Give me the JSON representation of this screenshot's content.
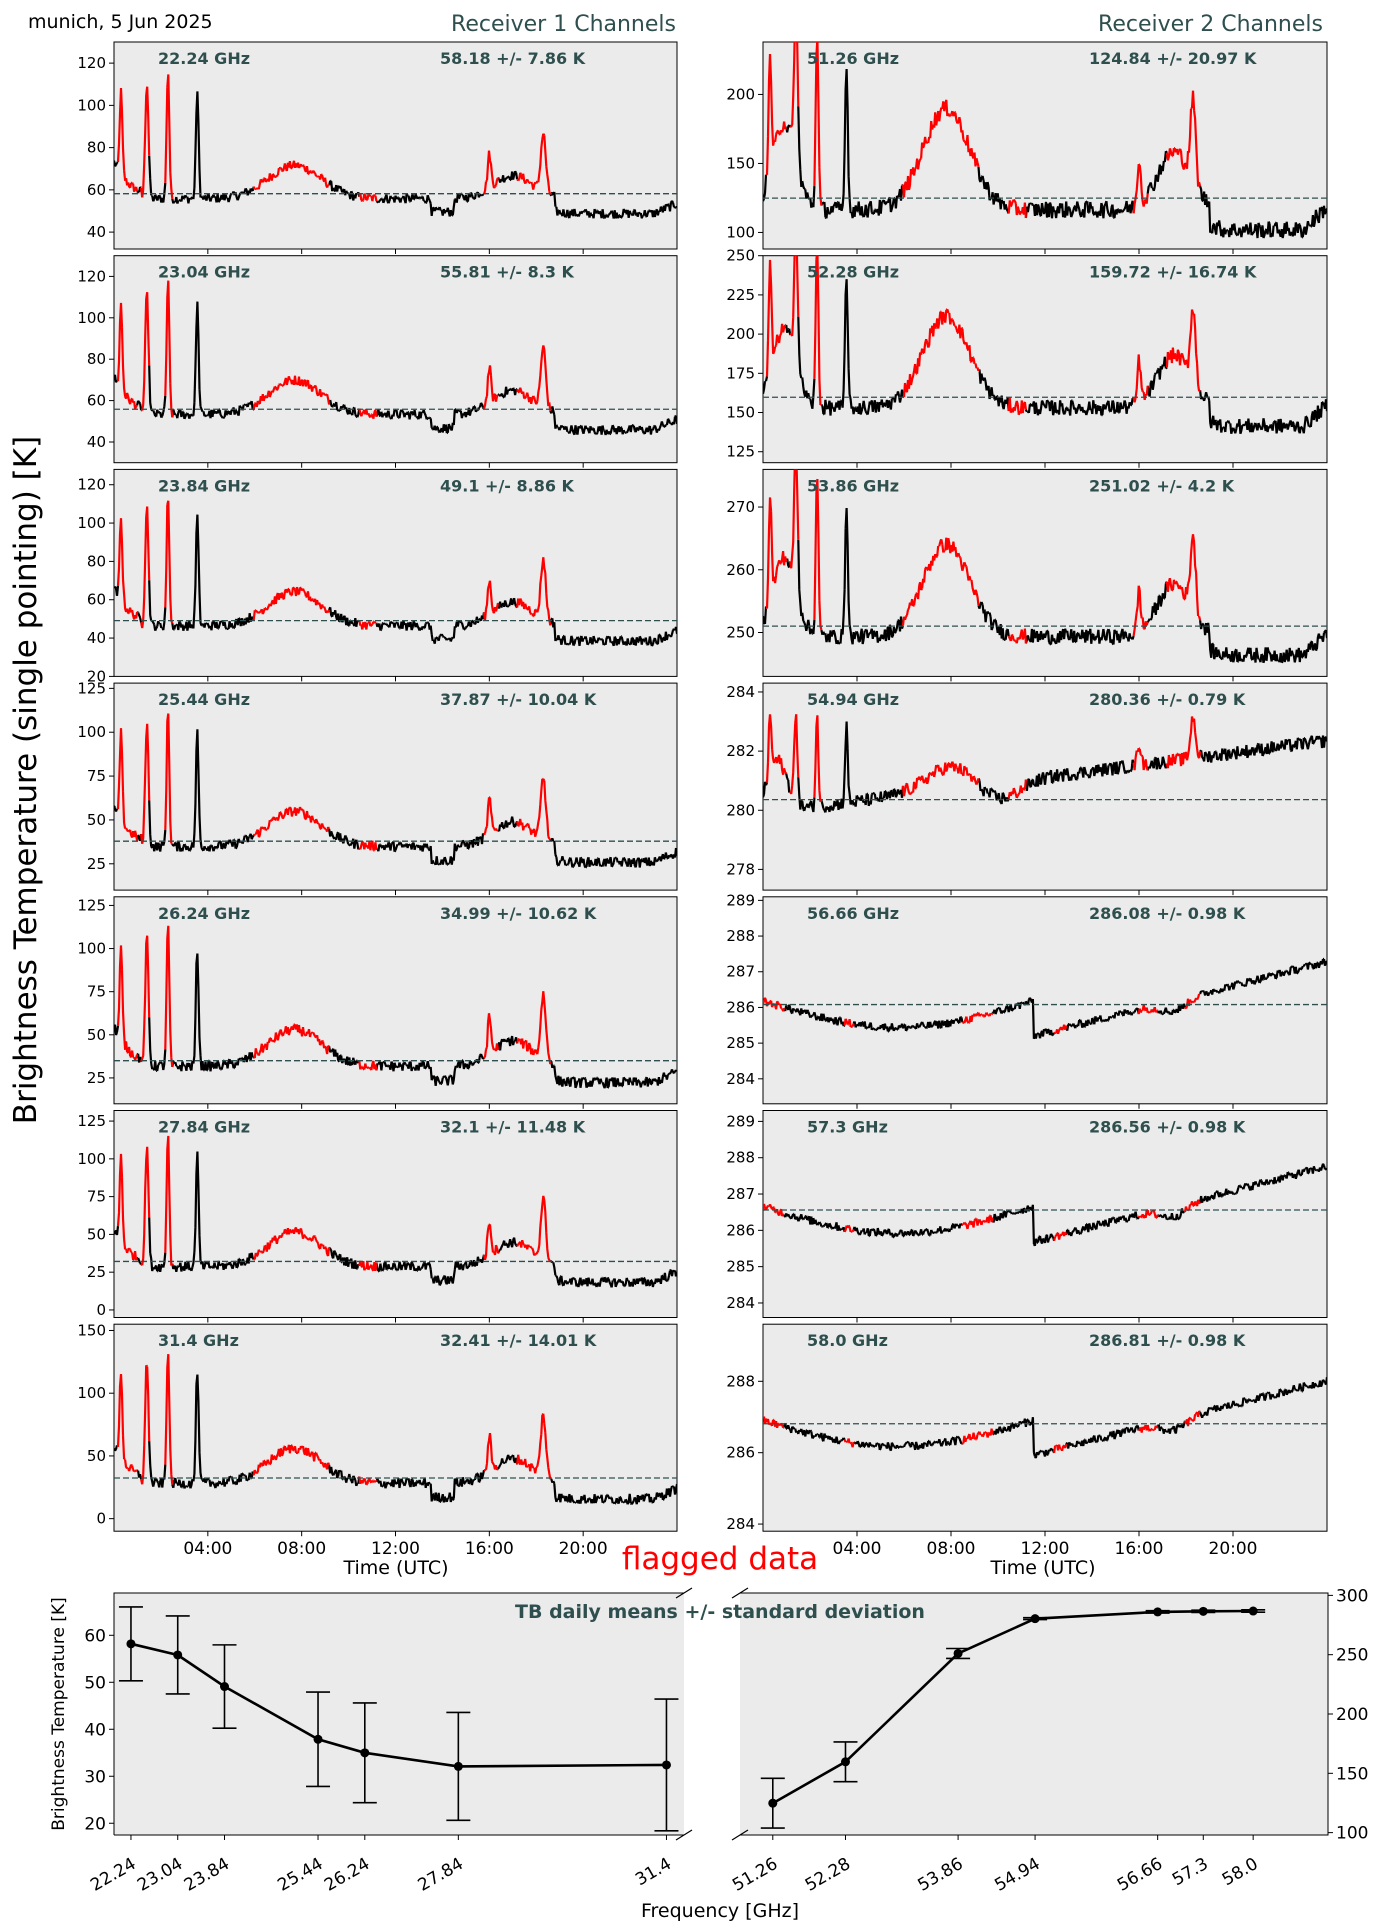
{
  "header": {
    "site_date": "munich, 5 Jun 2025",
    "receiver1_title": "Receiver 1 Channels",
    "receiver2_title": "Receiver 2 Channels"
  },
  "figure": {
    "ylabel": "Brightness Temperature (single pointing) [K]",
    "time_xlabel": "Time (UTC)",
    "time_ticks": [
      "04:00",
      "08:00",
      "12:00",
      "16:00",
      "20:00"
    ],
    "flag_text": "flagged data"
  },
  "colors": {
    "panel_bg": "#ebebeb",
    "good_data": "#000000",
    "flagged_data": "#ff0000",
    "mean_line": "#2f4f4f",
    "annotation": "#2f4f4f"
  },
  "chart_data": [
    {
      "type": "line",
      "title": "Receiver 1 Channels",
      "xlabel": "Time (UTC)",
      "xlim": [
        "00:00",
        "24:00"
      ],
      "grid": false,
      "colors": {
        "ok": "#000000",
        "flagged": "#ff0000",
        "mean": "#2f4f4f"
      },
      "panels": [
        {
          "freq_label": "22.24 GHz",
          "stats_label": "58.18 +/- 7.86 K",
          "mean": 58.18,
          "std": 7.86,
          "ylim": [
            32,
            130
          ],
          "yticks": [
            40,
            60,
            80,
            100,
            120
          ],
          "profile": "r1"
        },
        {
          "freq_label": "23.04 GHz",
          "stats_label": "55.81 +/- 8.3 K",
          "mean": 55.81,
          "std": 8.3,
          "ylim": [
            30,
            130
          ],
          "yticks": [
            40,
            60,
            80,
            100,
            120
          ],
          "profile": "r1"
        },
        {
          "freq_label": "23.84 GHz",
          "stats_label": "49.1 +/- 8.86 K",
          "mean": 49.1,
          "std": 8.86,
          "ylim": [
            20,
            128
          ],
          "yticks": [
            20,
            40,
            60,
            80,
            100,
            120
          ],
          "profile": "r1"
        },
        {
          "freq_label": "25.44 GHz",
          "stats_label": "37.87 +/- 10.04 K",
          "mean": 37.87,
          "std": 10.04,
          "ylim": [
            10,
            128
          ],
          "yticks": [
            25,
            50,
            75,
            100,
            125
          ],
          "profile": "r1"
        },
        {
          "freq_label": "26.24 GHz",
          "stats_label": "34.99 +/- 10.62 K",
          "mean": 34.99,
          "std": 10.62,
          "ylim": [
            10,
            130
          ],
          "yticks": [
            25,
            50,
            75,
            100,
            125
          ],
          "profile": "r1"
        },
        {
          "freq_label": "27.84 GHz",
          "stats_label": "32.1 +/- 11.48 K",
          "mean": 32.1,
          "std": 11.48,
          "ylim": [
            -5,
            132
          ],
          "yticks": [
            0,
            25,
            50,
            75,
            100,
            125
          ],
          "profile": "r1"
        },
        {
          "freq_label": "31.4 GHz",
          "stats_label": "32.41 +/- 14.01 K",
          "mean": 32.41,
          "std": 14.01,
          "ylim": [
            -10,
            155
          ],
          "yticks": [
            0,
            50,
            100,
            150
          ],
          "profile": "r1"
        }
      ]
    },
    {
      "type": "line",
      "title": "Receiver 2 Channels",
      "xlabel": "Time (UTC)",
      "xlim": [
        "00:00",
        "24:00"
      ],
      "grid": false,
      "colors": {
        "ok": "#000000",
        "flagged": "#ff0000",
        "mean": "#2f4f4f"
      },
      "panels": [
        {
          "freq_label": "51.26 GHz",
          "stats_label": "124.84 +/- 20.97 K",
          "mean": 124.84,
          "std": 20.97,
          "ylim": [
            88,
            238
          ],
          "yticks": [
            100,
            150,
            200
          ],
          "profile": "r2a"
        },
        {
          "freq_label": "52.28 GHz",
          "stats_label": "159.72 +/- 16.74 K",
          "mean": 159.72,
          "std": 16.74,
          "ylim": [
            118,
            250
          ],
          "yticks": [
            125,
            150,
            175,
            200,
            225,
            250
          ],
          "profile": "r2a"
        },
        {
          "freq_label": "53.86 GHz",
          "stats_label": "251.02 +/- 4.2 K",
          "mean": 251.02,
          "std": 4.2,
          "ylim": [
            243,
            276
          ],
          "yticks": [
            250,
            260,
            270
          ],
          "profile": "r2a"
        },
        {
          "freq_label": "54.94 GHz",
          "stats_label": "280.36 +/- 0.79 K",
          "mean": 280.36,
          "std": 0.79,
          "ylim": [
            277.3,
            284.3
          ],
          "yticks": [
            278,
            280,
            282,
            284
          ],
          "profile": "r2b"
        },
        {
          "freq_label": "56.66 GHz",
          "stats_label": "286.08 +/- 0.98 K",
          "mean": 286.08,
          "std": 0.98,
          "ylim": [
            283.3,
            289.1
          ],
          "yticks": [
            284,
            285,
            286,
            287,
            288,
            289
          ],
          "profile": "r2c"
        },
        {
          "freq_label": "57.3 GHz",
          "stats_label": "286.56 +/- 0.98 K",
          "mean": 286.56,
          "std": 0.98,
          "ylim": [
            283.6,
            289.3
          ],
          "yticks": [
            284,
            285,
            286,
            287,
            288,
            289
          ],
          "profile": "r2c"
        },
        {
          "freq_label": "58.0 GHz",
          "stats_label": "286.81 +/- 0.98 K",
          "mean": 286.81,
          "std": 0.98,
          "ylim": [
            283.8,
            289.6
          ],
          "yticks": [
            284,
            286,
            288
          ],
          "profile": "r2c"
        }
      ]
    },
    {
      "type": "line",
      "title": "TB daily means +/- standard deviation",
      "xlabel": "Frequency [GHz]",
      "ylabel": "Brightness Temperature [K]",
      "grid": false,
      "series": [
        {
          "axis": "left",
          "x": [
            22.24,
            23.04,
            23.84,
            25.44,
            26.24,
            27.84,
            31.4
          ],
          "y": [
            58.18,
            55.81,
            49.1,
            37.87,
            34.99,
            32.1,
            32.41
          ],
          "err": [
            7.86,
            8.3,
            8.86,
            10.04,
            10.62,
            11.48,
            14.01
          ]
        },
        {
          "axis": "right",
          "x": [
            51.26,
            52.28,
            53.86,
            54.94,
            56.66,
            57.3,
            58.0
          ],
          "y": [
            124.84,
            159.72,
            251.02,
            280.36,
            286.08,
            286.56,
            286.81
          ],
          "err": [
            20.97,
            16.74,
            4.2,
            0.79,
            0.98,
            0.98,
            0.98
          ]
        }
      ],
      "left_xlim": [
        21.95,
        31.7
      ],
      "right_xlim": [
        50.8,
        59.05
      ],
      "ylim_left": [
        17.5,
        69
      ],
      "yticks_left": [
        20,
        30,
        40,
        50,
        60
      ],
      "ylim_right": [
        98,
        302
      ],
      "yticks_right": [
        100,
        150,
        200,
        250,
        300
      ],
      "xtick_labels_left": [
        "22.24",
        "23.04",
        "23.84",
        "25.44",
        "26.24",
        "27.84",
        "31.4"
      ],
      "xtick_labels_right": [
        "51.26",
        "52.28",
        "53.86",
        "54.94",
        "56.66",
        "57.3",
        "58.0"
      ]
    }
  ]
}
